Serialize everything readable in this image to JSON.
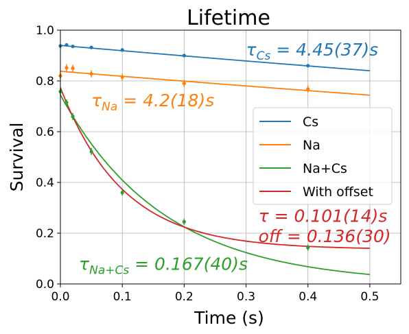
{
  "chart_data": {
    "type": "scatter",
    "title": "Lifetime",
    "xlabel": "Time (s)",
    "ylabel": "Survival",
    "xlim": [
      0.0,
      0.55
    ],
    "ylim": [
      0.0,
      1.0
    ],
    "xticks": [
      0.0,
      0.1,
      0.2,
      0.3,
      0.4,
      0.5
    ],
    "xtick_labels": [
      "0.0",
      "0.1",
      "0.2",
      "0.3",
      "0.4",
      "0.5"
    ],
    "yticks": [
      0.0,
      0.2,
      0.4,
      0.6,
      0.8,
      1.0
    ],
    "ytick_labels": [
      "0.0",
      "0.2",
      "0.4",
      "0.6",
      "0.8",
      "1.0"
    ],
    "grid": true,
    "legend_position": "center-right",
    "series": [
      {
        "name": "Cs",
        "color": "#1f77b4",
        "points": [
          {
            "x": 0.0,
            "y": 0.938,
            "err": 0.004
          },
          {
            "x": 0.01,
            "y": 0.942,
            "err": 0.004
          },
          {
            "x": 0.02,
            "y": 0.936,
            "err": 0.004
          },
          {
            "x": 0.05,
            "y": 0.932,
            "err": 0.004
          },
          {
            "x": 0.1,
            "y": 0.922,
            "err": 0.004
          },
          {
            "x": 0.2,
            "y": 0.9,
            "err": 0.004
          },
          {
            "x": 0.4,
            "y": 0.86,
            "err": 0.004
          }
        ],
        "fit": {
          "model": "exp",
          "A": 0.94,
          "tau": 4.45,
          "offset": 0.0
        }
      },
      {
        "name": "Na",
        "color": "#ff7f0e",
        "points": [
          {
            "x": 0.0,
            "y": 0.82,
            "err": 0.012
          },
          {
            "x": 0.01,
            "y": 0.852,
            "err": 0.014
          },
          {
            "x": 0.02,
            "y": 0.85,
            "err": 0.014
          },
          {
            "x": 0.05,
            "y": 0.828,
            "err": 0.014
          },
          {
            "x": 0.1,
            "y": 0.815,
            "err": 0.014
          },
          {
            "x": 0.2,
            "y": 0.79,
            "err": 0.014
          },
          {
            "x": 0.4,
            "y": 0.768,
            "err": 0.014
          }
        ],
        "fit": {
          "model": "exp",
          "A": 0.838,
          "tau": 4.2,
          "offset": 0.0
        }
      },
      {
        "name": "Na+Cs",
        "color": "#2ca02c",
        "points": [
          {
            "x": 0.0,
            "y": 0.758,
            "err": 0.012
          },
          {
            "x": 0.01,
            "y": 0.715,
            "err": 0.012
          },
          {
            "x": 0.02,
            "y": 0.66,
            "err": 0.014
          },
          {
            "x": 0.05,
            "y": 0.522,
            "err": 0.014
          },
          {
            "x": 0.1,
            "y": 0.36,
            "err": 0.012
          },
          {
            "x": 0.2,
            "y": 0.245,
            "err": 0.012
          },
          {
            "x": 0.4,
            "y": 0.143,
            "err": 0.012
          }
        ],
        "fit": {
          "model": "exp",
          "A": 0.745,
          "tau": 0.167,
          "offset": 0.0
        }
      },
      {
        "name": "With offset",
        "color": "#d62728",
        "points": [],
        "fit": {
          "model": "exp",
          "A": 0.638,
          "tau": 0.101,
          "offset": 0.136
        }
      }
    ],
    "annotations": [
      {
        "text": "τ_Cs = 4.45(37)s",
        "base": "τ",
        "sub": "Cs",
        "rest": " = 4.45(37)s",
        "x": 0.3,
        "y": 0.9,
        "color": "#1f77b4"
      },
      {
        "text": "τ_Na = 4.2(18)s",
        "base": "τ",
        "sub": "Na",
        "rest": " = 4.2(18)s",
        "x": 0.05,
        "y": 0.7,
        "color": "#ff7f0e"
      },
      {
        "text": "τ = 0.101(14)s",
        "base": "τ",
        "sub": "",
        "rest": " = 0.101(14)s",
        "x": 0.32,
        "y": 0.245,
        "color": "#d62728"
      },
      {
        "text": "off = 0.136(30)",
        "base": "off",
        "sub": "",
        "rest": " = 0.136(30)",
        "x": 0.32,
        "y": 0.165,
        "color": "#d62728"
      },
      {
        "text": "τ_Na+Cs = 0.167(40)s",
        "base": "τ",
        "sub": "Na+Cs",
        "rest": " = 0.167(40)s",
        "x": 0.03,
        "y": 0.055,
        "color": "#2ca02c"
      }
    ]
  }
}
